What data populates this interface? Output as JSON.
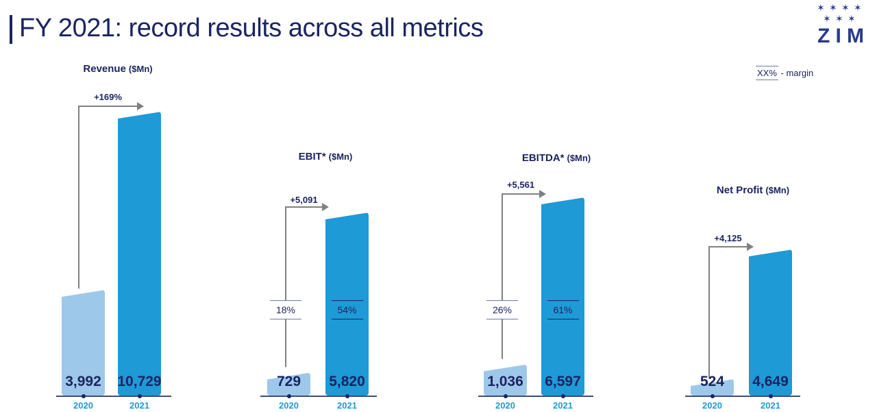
{
  "title": "FY 2021: record results across all metrics",
  "logo_text": "ZIM",
  "legend": {
    "sample": "XX%",
    "text": "- margin"
  },
  "colors": {
    "bar2020": "#9ec8ea",
    "bar2021": "#1e9ad6",
    "text": "#1c2461",
    "arrow": "#808080"
  },
  "chart_data": [
    {
      "type": "bar",
      "title": "Revenue",
      "unit": "($Mn)",
      "categories": [
        "2020",
        "2021"
      ],
      "values": [
        3992,
        10729
      ],
      "value_labels": [
        "3,992",
        "10,729"
      ],
      "change": "+169%",
      "margins": null
    },
    {
      "type": "bar",
      "title": "EBIT*",
      "unit": "($Mn)",
      "categories": [
        "2020",
        "2021"
      ],
      "values": [
        729,
        5820
      ],
      "value_labels": [
        "729",
        "5,820"
      ],
      "change": "+5,091",
      "margins": [
        "18%",
        "54%"
      ]
    },
    {
      "type": "bar",
      "title": "EBITDA*",
      "unit": "($Mn)",
      "categories": [
        "2020",
        "2021"
      ],
      "values": [
        1036,
        6597
      ],
      "value_labels": [
        "1,036",
        "6,597"
      ],
      "change": "+5,561",
      "margins": [
        "26%",
        "61%"
      ]
    },
    {
      "type": "bar",
      "title": "Net Profit",
      "unit": "($Mn)",
      "categories": [
        "2020",
        "2021"
      ],
      "values": [
        524,
        4649
      ],
      "value_labels": [
        "524",
        "4,649"
      ],
      "change": "+4,125",
      "margins": null
    }
  ]
}
